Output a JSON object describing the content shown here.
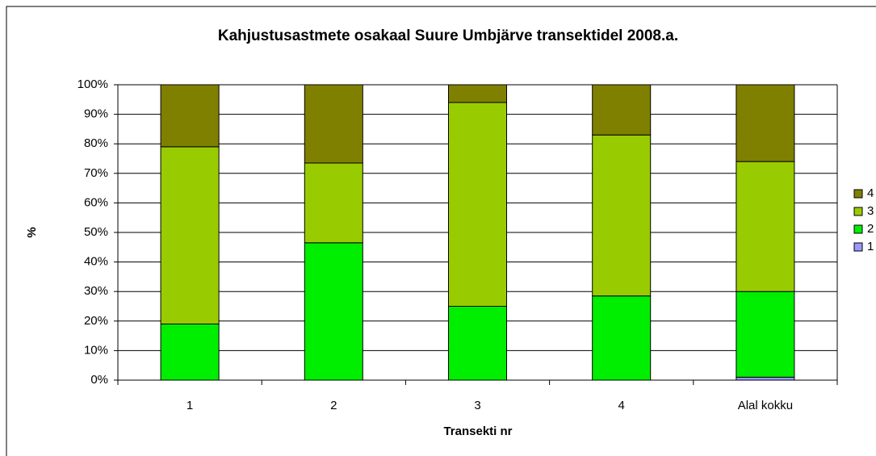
{
  "chart_data": {
    "type": "stacked_bar_percent",
    "title": "Kahjustusastmete osakaal Suure Umbjärve transektidel 2008.a.",
    "x_label": "Transekti nr",
    "y_label": "%",
    "categories": [
      "1",
      "2",
      "3",
      "4",
      "Alal kokku"
    ],
    "series": [
      {
        "name": "1",
        "color": "#9999ff",
        "values": [
          0,
          0,
          0,
          0,
          1
        ]
      },
      {
        "name": "2",
        "color": "#00ee00",
        "values": [
          19,
          46.5,
          25,
          28.5,
          29
        ]
      },
      {
        "name": "3",
        "color": "#99cc00",
        "values": [
          60,
          27,
          69,
          54.5,
          44
        ]
      },
      {
        "name": "4",
        "color": "#808000",
        "values": [
          21,
          26.5,
          6,
          17,
          26
        ]
      }
    ],
    "ylim": [
      0,
      100
    ],
    "yticks": [
      {
        "value": 0,
        "label": "0%"
      },
      {
        "value": 10,
        "label": "10%"
      },
      {
        "value": 20,
        "label": "20%"
      },
      {
        "value": 30,
        "label": "30%"
      },
      {
        "value": 40,
        "label": "40%"
      },
      {
        "value": 50,
        "label": "50%"
      },
      {
        "value": 60,
        "label": "60%"
      },
      {
        "value": 70,
        "label": "70%"
      },
      {
        "value": 80,
        "label": "80%"
      },
      {
        "value": 90,
        "label": "90%"
      },
      {
        "value": 100,
        "label": "100%"
      }
    ],
    "grid": true,
    "legend": "right"
  }
}
